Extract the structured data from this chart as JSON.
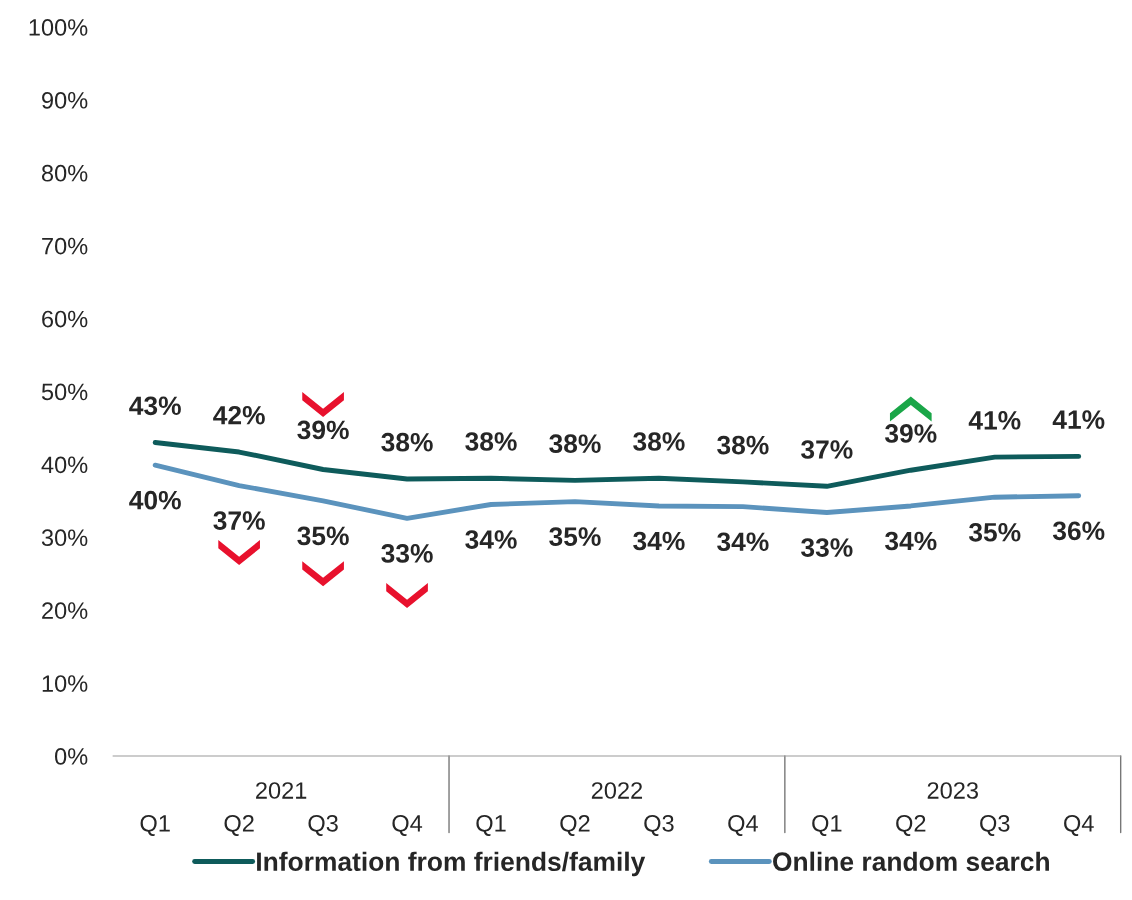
{
  "chart_data": {
    "type": "line",
    "categories": [
      "Q1",
      "Q2",
      "Q3",
      "Q4",
      "Q1",
      "Q2",
      "Q3",
      "Q4",
      "Q1",
      "Q2",
      "Q3",
      "Q4"
    ],
    "series": [
      {
        "name": "Information from friends/family",
        "color": "#0e5b5b",
        "values": [
          43.0,
          41.7,
          39.3,
          38.0,
          38.1,
          37.8,
          38.1,
          37.6,
          37.0,
          39.2,
          41.0,
          41.1
        ],
        "value_labels": [
          "43%",
          "42%",
          "39%",
          "38%",
          "38%",
          "38%",
          "38%",
          "38%",
          "37%",
          "39%",
          "41%",
          "41%"
        ]
      },
      {
        "name": "Online random search",
        "color": "#5b93bd",
        "values": [
          39.9,
          37.1,
          35.0,
          32.6,
          34.5,
          34.9,
          34.3,
          34.2,
          33.4,
          34.3,
          35.5,
          35.7
        ],
        "value_labels": [
          "40%",
          "37%",
          "35%",
          "33%",
          "34%",
          "35%",
          "34%",
          "34%",
          "33%",
          "34%",
          "35%",
          "36%"
        ]
      }
    ],
    "ylim": [
      0,
      100
    ],
    "yticks": [
      {
        "value": 0,
        "label": "0%"
      },
      {
        "value": 10,
        "label": "10%"
      },
      {
        "value": 20,
        "label": "20%"
      },
      {
        "value": 30,
        "label": "30%"
      },
      {
        "value": 40,
        "label": "40%"
      },
      {
        "value": 50,
        "label": "50%"
      },
      {
        "value": 60,
        "label": "60%"
      },
      {
        "value": 70,
        "label": "70%"
      },
      {
        "value": 80,
        "label": "80%"
      },
      {
        "value": 90,
        "label": "90%"
      },
      {
        "value": 100,
        "label": "100%"
      }
    ],
    "annotations": [
      "2021",
      "2022",
      "2023"
    ],
    "grid": false,
    "legend": "bottom",
    "marker": "none",
    "line_style": "solid"
  }
}
